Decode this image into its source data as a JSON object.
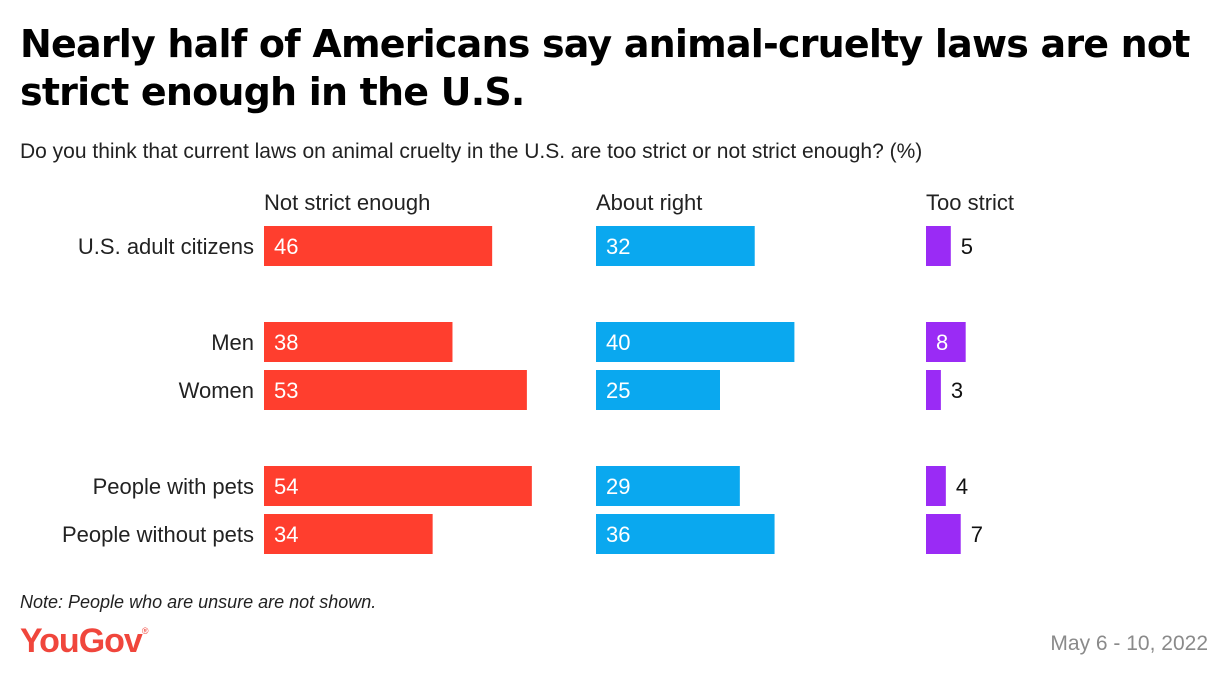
{
  "header": {
    "title": "Nearly half of Americans say animal-cruelty laws are not strict enough in the U.S.",
    "subtitle": "Do you think that current laws on animal cruelty in the U.S. are too strict or not strict enough? (%)"
  },
  "footer": {
    "note": "Note: People who are unsure are not shown.",
    "logo_text": "YouGov",
    "logo_mark": "®",
    "date": "May 6 - 10, 2022"
  },
  "colors": {
    "logo": "#f0463c"
  },
  "chart_data": {
    "type": "bar",
    "orientation": "horizontal",
    "layout": "small-multiples",
    "categories": [
      "U.S. adult citizens",
      "Men",
      "Women",
      "People with pets",
      "People without pets"
    ],
    "groups": [
      [
        0
      ],
      [
        1,
        2
      ],
      [
        3,
        4
      ]
    ],
    "series": [
      {
        "name": "Not strict enough",
        "color": "#ff3e2e",
        "values": [
          46,
          38,
          53,
          54,
          34
        ]
      },
      {
        "name": "About right",
        "color": "#0aa8ef",
        "values": [
          32,
          40,
          25,
          29,
          36
        ]
      },
      {
        "name": "Too strict",
        "color": "#9a2bf5",
        "values": [
          5,
          8,
          3,
          4,
          7
        ]
      }
    ],
    "value_labels": true,
    "grid": false,
    "legend": "column-headers"
  }
}
